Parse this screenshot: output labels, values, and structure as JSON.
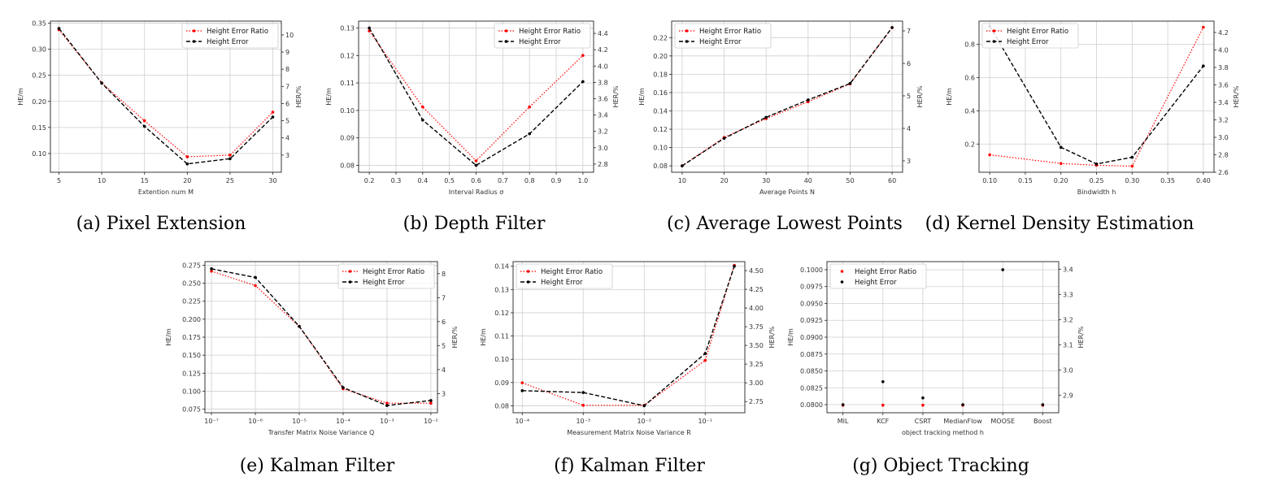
{
  "colors": {
    "ratio": "#ff0000",
    "error": "#000000",
    "grid": "#cfcfcf"
  },
  "chart_data": [
    {
      "type": "line",
      "caption": "(a) Pixel Extension",
      "xlabel": "Extention num M",
      "ylabel": "HE/m",
      "y2label": "HER/%",
      "x": [
        5,
        10,
        15,
        20,
        25,
        30
      ],
      "xlim": [
        4,
        31
      ],
      "ylim": [
        0.064,
        0.354
      ],
      "y2lim": [
        2,
        10.8
      ],
      "xticks": [
        5,
        10,
        15,
        20,
        25,
        30
      ],
      "yticks": [
        0.1,
        0.15,
        0.2,
        0.25,
        0.3,
        0.35
      ],
      "ydec": 2,
      "y2ticks": [
        3,
        4,
        5,
        6,
        7,
        8,
        9,
        10
      ],
      "y2dec": 0,
      "legend": "top-right",
      "series": [
        {
          "name": "Height Error Ratio",
          "axis": "right",
          "values": [
            10.3,
            7.2,
            5.0,
            2.9,
            3.0,
            5.5
          ]
        },
        {
          "name": "Height Error",
          "axis": "left",
          "values": [
            0.34,
            0.235,
            0.152,
            0.08,
            0.09,
            0.17
          ]
        }
      ]
    },
    {
      "type": "line",
      "caption": "(b) Depth Filter",
      "xlabel": "Interval Radius σ",
      "ylabel": "HE/m",
      "y2label": "HER/%",
      "x": [
        0.2,
        0.4,
        0.6,
        0.8,
        1.0
      ],
      "xlim": [
        0.16,
        1.04
      ],
      "ylim": [
        0.0775,
        0.1325
      ],
      "y2lim": [
        2.7,
        4.55
      ],
      "xticks": [
        0.2,
        0.3,
        0.4,
        0.5,
        0.6,
        0.7,
        0.8,
        0.9,
        1.0
      ],
      "yticks": [
        0.08,
        0.09,
        0.1,
        0.11,
        0.12,
        0.13
      ],
      "ydec": 2,
      "y2ticks": [
        2.8,
        3.0,
        3.2,
        3.4,
        3.6,
        3.8,
        4.0,
        4.2,
        4.4
      ],
      "y2dec": 1,
      "legend": "top-right",
      "series": [
        {
          "name": "Height Error Ratio",
          "axis": "right",
          "values": [
            4.43,
            3.5,
            2.84,
            3.5,
            4.13
          ]
        },
        {
          "name": "Height Error",
          "axis": "left",
          "values": [
            0.13,
            0.0965,
            0.08,
            0.0915,
            0.1105
          ]
        }
      ]
    },
    {
      "type": "line",
      "caption": "(c) Average Lowest Points",
      "xlabel": "Average Points N",
      "ylabel": "HE/m",
      "y2label": "HER/%",
      "x": [
        10,
        20,
        30,
        40,
        50,
        60
      ],
      "xlim": [
        7.5,
        62.5
      ],
      "ylim": [
        0.073,
        0.238
      ],
      "y2lim": [
        2.65,
        7.3
      ],
      "xticks": [
        10,
        20,
        30,
        40,
        50,
        60
      ],
      "yticks": [
        0.08,
        0.1,
        0.12,
        0.14,
        0.16,
        0.18,
        0.2,
        0.22
      ],
      "ydec": 2,
      "y2ticks": [
        3,
        4,
        5,
        6,
        7
      ],
      "y2dec": 0,
      "legend": "top-left",
      "series": [
        {
          "name": "Height Error Ratio",
          "axis": "right",
          "values": [
            2.85,
            3.72,
            4.3,
            4.82,
            5.37,
            7.1
          ]
        },
        {
          "name": "Height Error",
          "axis": "left",
          "values": [
            0.08,
            0.11,
            0.133,
            0.152,
            0.17,
            0.231
          ]
        }
      ]
    },
    {
      "type": "line",
      "caption": "(d) Kernel Density Estimation",
      "xlabel": "Bindwidth h",
      "ylabel": "HE/m",
      "y2label": "HER/%",
      "x": [
        0.1,
        0.2,
        0.25,
        0.3,
        0.4
      ],
      "xlim": [
        0.085,
        0.415
      ],
      "ylim": [
        0.03,
        0.94
      ],
      "y2lim": [
        2.6,
        4.33
      ],
      "xticks": [
        0.1,
        0.15,
        0.2,
        0.25,
        0.3,
        0.35,
        0.4
      ],
      "yticks": [
        0.2,
        0.4,
        0.6,
        0.8
      ],
      "ydec": 1,
      "y2ticks": [
        2.6,
        2.8,
        3.0,
        3.2,
        3.4,
        3.6,
        3.8,
        4.0,
        4.2
      ],
      "y2dec": 1,
      "legend": "top-left",
      "series": [
        {
          "name": "Height Error Ratio",
          "axis": "right",
          "values": [
            2.8,
            2.7,
            2.68,
            2.67,
            4.26
          ]
        },
        {
          "name": "Height Error",
          "axis": "left",
          "values": [
            0.91,
            0.18,
            0.08,
            0.12,
            0.67
          ]
        }
      ]
    },
    {
      "type": "line",
      "caption": "(e) Kalman Filter",
      "xlabel": "Transfer Matrix Noise Variance Q",
      "ylabel": "HE/m",
      "y2label": "HER/%",
      "xscale": "log",
      "x": [
        1e-07,
        1e-06,
        1e-05,
        0.0001,
        0.001,
        0.01
      ],
      "xlim": [
        -7.15,
        -1.85
      ],
      "ylim": [
        0.07,
        0.28
      ],
      "y2lim": [
        2.2,
        8.5
      ],
      "xticks": [
        -7,
        -6,
        -5,
        -4,
        -3,
        -2
      ],
      "xticklabels": [
        "10⁻⁷",
        "10⁻⁶",
        "10⁻⁵",
        "10⁻⁴",
        "10⁻³",
        "10⁻²"
      ],
      "yticks": [
        0.075,
        0.1,
        0.125,
        0.15,
        0.175,
        0.2,
        0.225,
        0.25,
        0.275
      ],
      "ydec": 3,
      "y2ticks": [
        3,
        4,
        5,
        6,
        7,
        8
      ],
      "y2dec": 0,
      "legend": "top-right",
      "series": [
        {
          "name": "Height Error Ratio",
          "axis": "right",
          "values": [
            8.1,
            7.5,
            5.8,
            3.2,
            2.6,
            2.6
          ]
        },
        {
          "name": "Height Error",
          "axis": "left",
          "values": [
            0.27,
            0.258,
            0.19,
            0.105,
            0.08,
            0.087
          ]
        }
      ]
    },
    {
      "type": "line",
      "caption": "(f) Kalman Filter",
      "xlabel": "Measurement Matrix Noise Variance R",
      "ylabel": "HE/m",
      "y2label": "HER/%",
      "xscale": "log",
      "x": [
        0.0001,
        0.001,
        0.01,
        0.1,
        0.3
      ],
      "xlim": [
        -4.15,
        -0.35
      ],
      "ylim": [
        0.077,
        0.142
      ],
      "y2lim": [
        2.6,
        4.62
      ],
      "xticks": [
        -4,
        -3,
        -2,
        -1
      ],
      "xticklabels": [
        "10⁻⁴",
        "10⁻³",
        "10⁻²",
        "10⁻¹"
      ],
      "yticks": [
        0.08,
        0.09,
        0.1,
        0.11,
        0.12,
        0.13,
        0.14
      ],
      "ydec": 2,
      "y2ticks": [
        2.75,
        3.0,
        3.25,
        3.5,
        3.75,
        4.0,
        4.25,
        4.5
      ],
      "y2dec": 2,
      "legend": "top-left",
      "series": [
        {
          "name": "Height Error Ratio",
          "axis": "right",
          "values": [
            3.0,
            2.7,
            2.7,
            3.3,
            4.57
          ]
        },
        {
          "name": "Height Error",
          "axis": "left",
          "values": [
            0.0865,
            0.0857,
            0.08,
            0.1025,
            0.14
          ]
        }
      ]
    },
    {
      "type": "scatter",
      "caption": "(g) Object Tracking",
      "xlabel": "object tracking method h",
      "ylabel": "HE/m",
      "y2label": "HER/%",
      "categories": [
        "MIL",
        "KCF",
        "CSRT",
        "MedianFlow",
        "MOOSE",
        "Boost"
      ],
      "xlim": [
        -0.4,
        5.4
      ],
      "ylim": [
        0.0788,
        0.1012
      ],
      "y2lim": [
        2.83,
        3.43
      ],
      "yticks": [
        0.08,
        0.0825,
        0.085,
        0.0875,
        0.09,
        0.0925,
        0.095,
        0.0975,
        0.1
      ],
      "ydec": 4,
      "y2ticks": [
        2.9,
        3.0,
        3.1,
        3.2,
        3.3,
        3.4
      ],
      "y2dec": 1,
      "legend": "top-left",
      "series": [
        {
          "name": "Height Error Ratio",
          "axis": "right",
          "values": [
            2.86,
            2.86,
            2.86,
            2.86,
            null,
            2.86
          ]
        },
        {
          "name": "Height Error",
          "axis": "left",
          "values": [
            0.08,
            0.0834,
            0.081,
            0.08,
            0.1,
            0.08
          ]
        }
      ]
    }
  ]
}
